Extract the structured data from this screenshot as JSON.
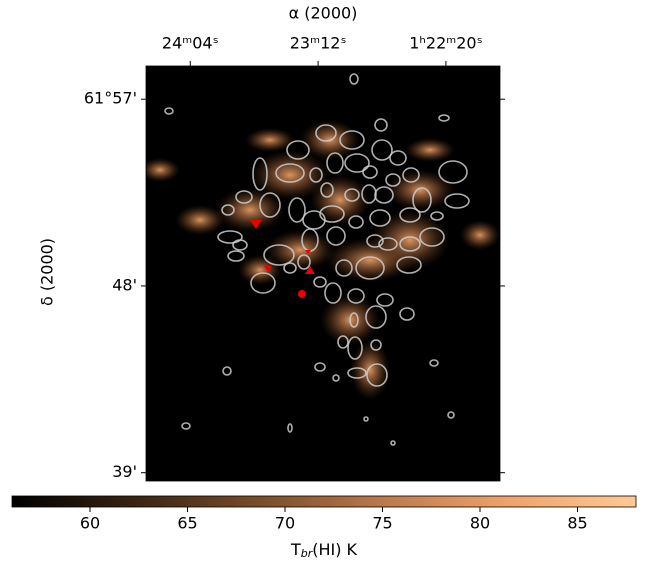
{
  "chart_data": {
    "type": "image",
    "x_label": "α (2000)",
    "y_label": "δ (2000)",
    "xlim": [
      5062,
      4918
    ],
    "xticks": [
      {
        "value": 5044,
        "label": "24ᵐ04ˢ"
      },
      {
        "value": 4992,
        "label": "23ᵐ12ˢ"
      },
      {
        "value": 4940,
        "label": "1ʰ22ᵐ20ˢ"
      }
    ],
    "ylim": [
      38.6,
      58.6
    ],
    "yticks": [
      {
        "value": 57,
        "label": "61°57'"
      },
      {
        "value": 48,
        "label": "48'"
      },
      {
        "value": 39,
        "label": "39'"
      }
    ],
    "colorbar": {
      "clim": [
        56,
        88
      ],
      "ticks": [
        60,
        65,
        70,
        75,
        80,
        85
      ],
      "colors": [
        "#000000",
        "#3a2412",
        "#7a4d2a",
        "#bd7a4c",
        "#f0a36b",
        "#ffc994"
      ],
      "label": {
        "main": "T",
        "sub": "br",
        "rest": "(HI) K"
      }
    }
  }
}
